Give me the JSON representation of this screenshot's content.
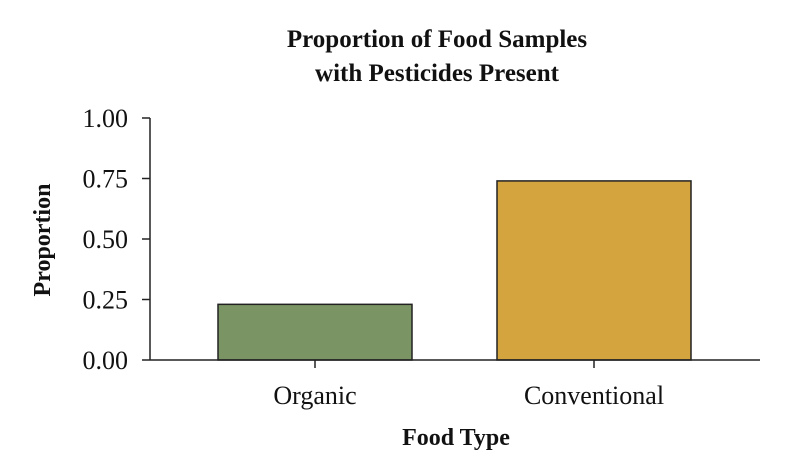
{
  "chart_data": {
    "type": "bar",
    "title": "Proportion of Food Samples",
    "subtitle": "with Pesticides Present",
    "xlabel": "Food Type",
    "ylabel": "Proportion",
    "categories": [
      "Organic",
      "Conventional"
    ],
    "values": [
      0.23,
      0.74
    ],
    "colors": [
      "#7a9464",
      "#d4a43f"
    ],
    "ylim": [
      0,
      1
    ],
    "yticks": [
      "0.00",
      "0.25",
      "0.50",
      "0.75",
      "1.00"
    ],
    "grid": false,
    "legend": false
  }
}
